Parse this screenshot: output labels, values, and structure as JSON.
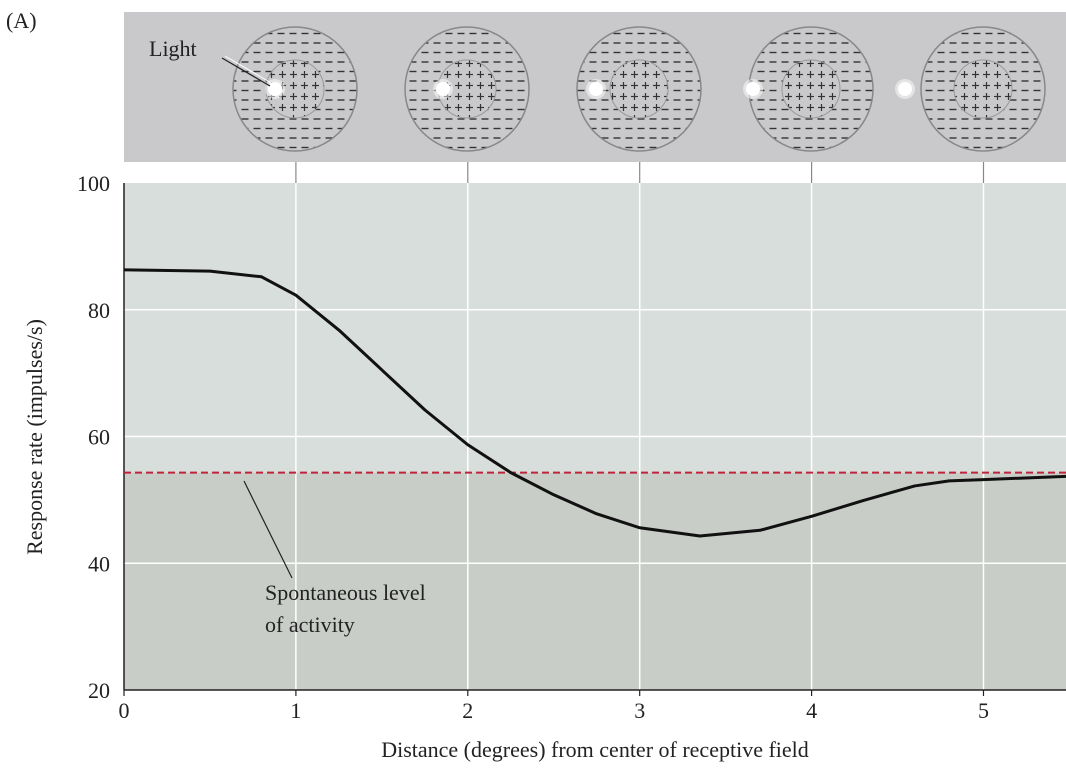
{
  "chart_data": {
    "type": "line",
    "panel_label": "(A)",
    "stimulus_label": "Light",
    "xlabel": "Distance (degrees) from center of receptive field",
    "ylabel": "Response rate (impulses/s)",
    "x": [
      0,
      0.5,
      0.8,
      1,
      1.25,
      1.5,
      1.75,
      2,
      2.25,
      2.5,
      2.75,
      3,
      3.35,
      3.7,
      4,
      4.3,
      4.6,
      4.8,
      5,
      5.48
    ],
    "series": [
      {
        "color": "#111111",
        "values": [
          86.3,
          86.1,
          85.2,
          82.3,
          76.8,
          70.5,
          64.2,
          58.7,
          54.3,
          50.8,
          47.8,
          45.6,
          44.3,
          45.2,
          47.4,
          49.9,
          52.2,
          53.0,
          53.2,
          53.7
        ]
      }
    ],
    "xlim": [
      0,
      5.48
    ],
    "ylim": [
      20,
      100
    ],
    "xticks": [
      0,
      1,
      2,
      3,
      4,
      5
    ],
    "yticks": [
      20,
      40,
      60,
      80,
      100
    ],
    "grid": true,
    "reference_line": {
      "value": 54.3,
      "color": "#c0243b",
      "label": [
        "Spontaneous level",
        "of activity"
      ]
    }
  }
}
